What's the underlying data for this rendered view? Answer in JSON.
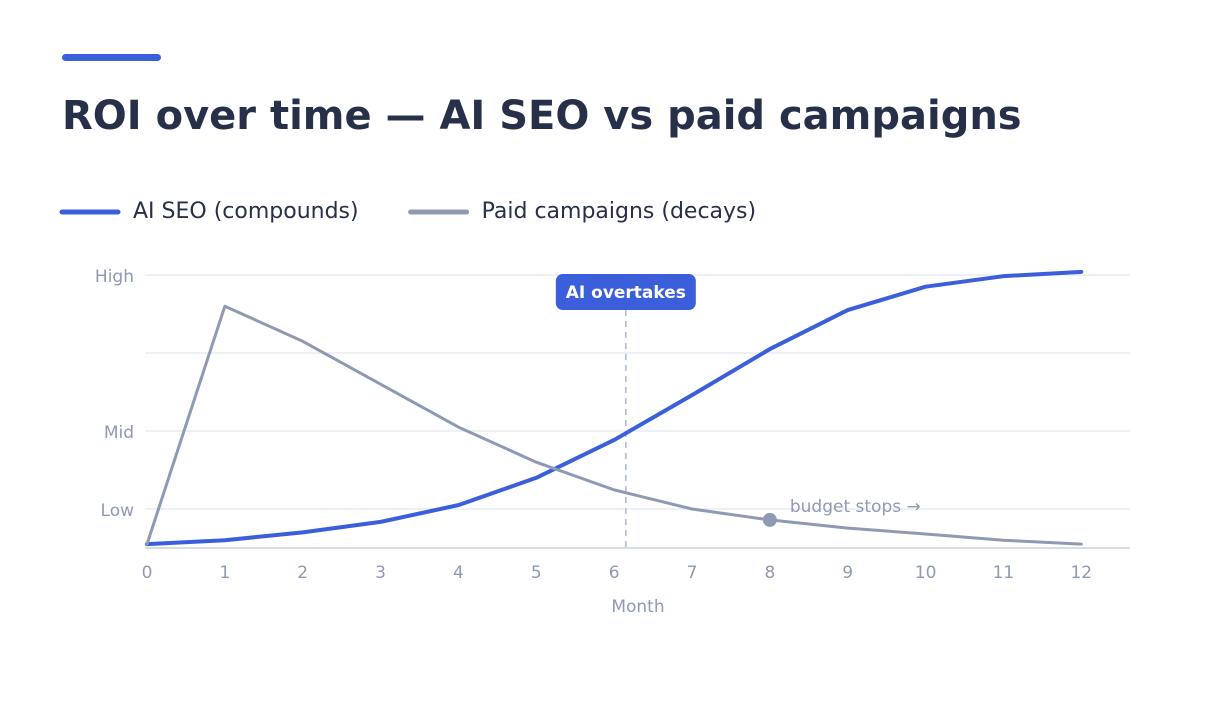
{
  "chart_data": {
    "type": "line",
    "title": "ROI over time — AI SEO vs paid campaigns",
    "x_label": "Month",
    "x": [
      0,
      1,
      2,
      3,
      4,
      5,
      6,
      7,
      8,
      9,
      10,
      11,
      12
    ],
    "series": [
      {
        "name": "AI SEO (compounds)",
        "color": "#3b5fdb",
        "values": [
          0.1,
          0.2,
          0.4,
          0.67,
          1.1,
          1.8,
          2.77,
          3.92,
          5.1,
          6.1,
          6.7,
          6.97,
          7.08
        ]
      },
      {
        "name": "Paid campaigns (decays)",
        "color": "#8e9ab3",
        "values": [
          0.1,
          6.2,
          5.3,
          4.2,
          3.1,
          2.2,
          1.49,
          1.0,
          0.72,
          0.51,
          0.36,
          0.2,
          0.1
        ]
      }
    ],
    "xlim": [
      0,
      12.6
    ],
    "xticks": [
      0,
      1,
      2,
      3,
      4,
      5,
      6,
      7,
      8,
      9,
      10,
      11,
      12
    ],
    "ylim": [
      0,
      7
    ],
    "yticks": [
      {
        "value": 1,
        "label": "Low"
      },
      {
        "value": 3,
        "label": "Mid"
      },
      {
        "value": 5,
        "label": null
      },
      {
        "value": 7,
        "label": "High"
      }
    ],
    "grid": true,
    "legend": "top-left",
    "annotations": [
      {
        "text": "AI overtakes",
        "x": 6.15
      },
      {
        "text": "budget stops →",
        "x": 8,
        "series": 1
      }
    ]
  }
}
